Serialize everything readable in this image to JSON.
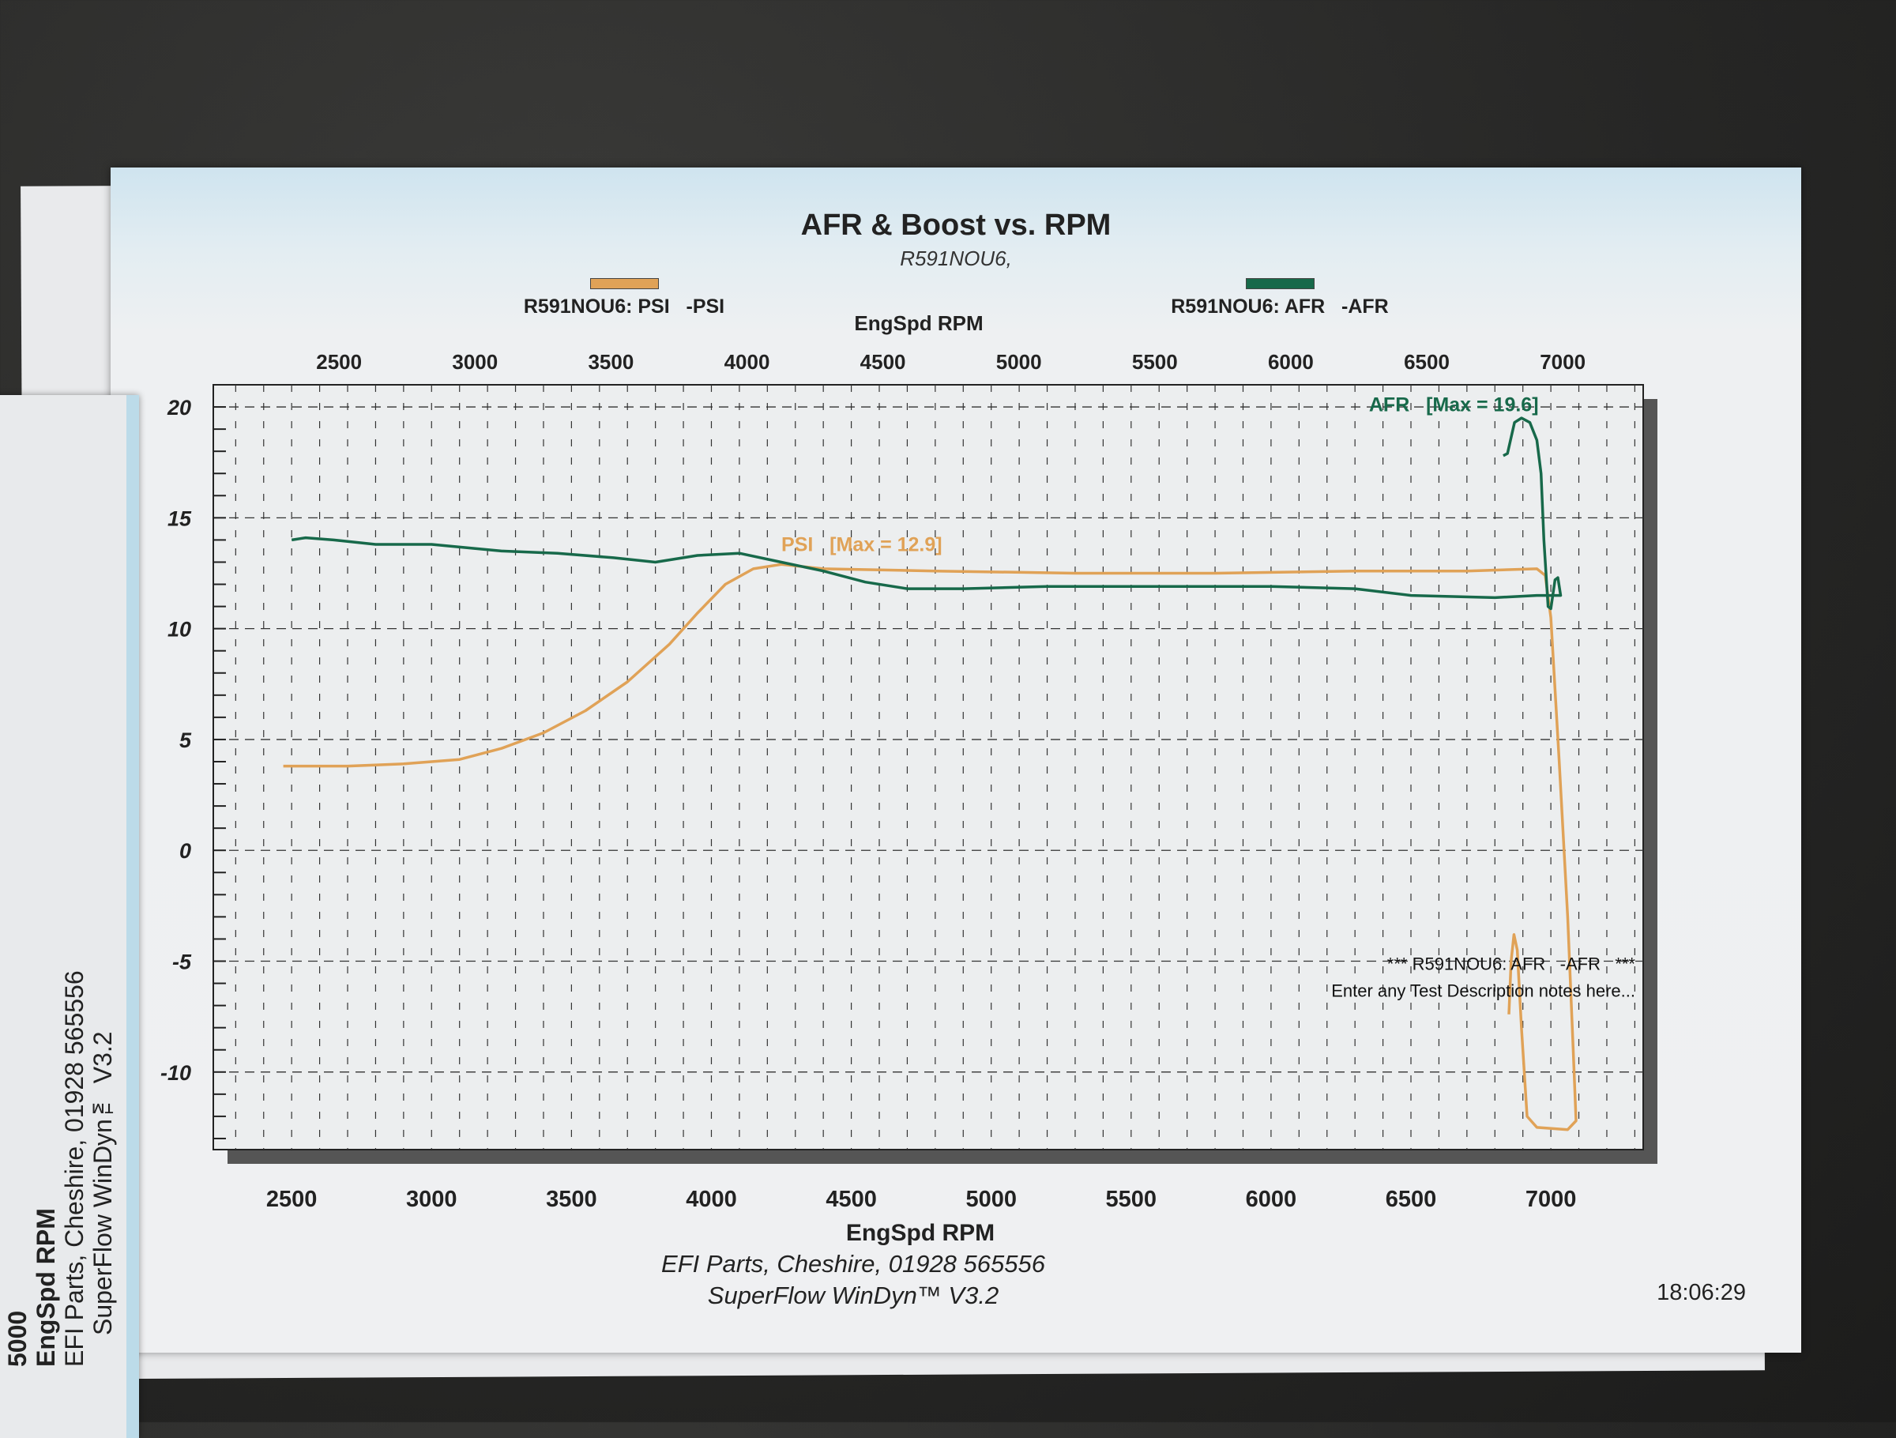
{
  "side_sheet": {
    "tick": "5000",
    "xlabel": "EngSpd RPM",
    "line1": "EFI Parts, Cheshire, 01928 565556",
    "line2": "SuperFlow WinDyn™ V3.2"
  },
  "footer": {
    "line1": "EFI Parts, Cheshire, 01928 565556",
    "line2": "SuperFlow WinDyn™ V3.2",
    "time": "18:06:29"
  },
  "colors": {
    "psi": "#e0a257",
    "afr": "#17694a",
    "background": "#262625",
    "paper": "#eff0f2"
  },
  "chart_data": {
    "type": "line",
    "title": "AFR & Boost vs. RPM",
    "subtitle": "R591NOU6,",
    "xlabel": "EngSpd RPM",
    "xlabel_top": "EngSpd RPM",
    "ylabel": "",
    "xlim": [
      2220,
      7330
    ],
    "ylim": [
      -13.5,
      21
    ],
    "xticks": [
      2500,
      3000,
      3500,
      4000,
      4500,
      5000,
      5500,
      6000,
      6500,
      7000
    ],
    "xtick_labels": [
      "2500",
      "3000",
      "3500",
      "4000",
      "4500",
      "5000",
      "5500",
      "6000",
      "6500",
      "7000"
    ],
    "yticks": [
      20,
      15,
      10,
      5,
      0,
      -5,
      -10
    ],
    "ytick_labels": [
      "20",
      "15",
      "10",
      "5",
      "0",
      "-5",
      "-10"
    ],
    "grid": true,
    "legend_placement": "top",
    "legend": [
      "R591NOU6: PSI   -PSI",
      "R591NOU6: AFR   -AFR"
    ],
    "annotations": {
      "psi_max": "PSI   [Max = 12.9]",
      "afr_max": "AFR   [Max = 19.6]",
      "note_line1": "*** R591NOU6: AFR   -AFR   ***",
      "note_line2": "Enter any Test Description notes here..."
    },
    "series": [
      {
        "name": "R591NOU6: PSI   -PSI",
        "color": "#e0a257",
        "points": [
          [
            2470,
            3.8
          ],
          [
            2700,
            3.8
          ],
          [
            2900,
            3.9
          ],
          [
            3100,
            4.1
          ],
          [
            3250,
            4.6
          ],
          [
            3400,
            5.3
          ],
          [
            3550,
            6.3
          ],
          [
            3700,
            7.6
          ],
          [
            3850,
            9.3
          ],
          [
            3950,
            10.7
          ],
          [
            4050,
            12.0
          ],
          [
            4150,
            12.7
          ],
          [
            4250,
            12.9
          ],
          [
            4400,
            12.7
          ],
          [
            4800,
            12.6
          ],
          [
            5300,
            12.5
          ],
          [
            5800,
            12.5
          ],
          [
            6300,
            12.6
          ],
          [
            6700,
            12.6
          ],
          [
            6950,
            12.7
          ],
          [
            6980,
            12.4
          ],
          [
            7000,
            10.5
          ],
          [
            7030,
            4
          ],
          [
            7060,
            -3
          ],
          [
            7080,
            -9
          ],
          [
            7090,
            -12.2
          ],
          [
            7060,
            -12.6
          ],
          [
            6950,
            -12.5
          ],
          [
            6915,
            -12.0
          ],
          [
            6895,
            -8
          ],
          [
            6880,
            -4.5
          ],
          [
            6868,
            -3.8
          ],
          [
            6858,
            -5
          ],
          [
            6850,
            -7.4
          ]
        ]
      },
      {
        "name": "R591NOU6: AFR   -AFR",
        "color": "#17694a",
        "points": [
          [
            6830,
            17.8
          ],
          [
            6845,
            17.9
          ],
          [
            6870,
            19.3
          ],
          [
            6895,
            19.5
          ],
          [
            6925,
            19.3
          ],
          [
            6950,
            18.5
          ],
          [
            6965,
            17
          ],
          [
            6975,
            14
          ],
          [
            6990,
            11.0
          ],
          [
            7000,
            10.9
          ],
          [
            7015,
            12.2
          ],
          [
            7025,
            12.3
          ],
          [
            7035,
            11.5
          ],
          [
            7010,
            11.5
          ],
          [
            6950,
            11.5
          ],
          [
            6800,
            11.4
          ],
          [
            6500,
            11.5
          ],
          [
            6300,
            11.8
          ],
          [
            6000,
            11.9
          ],
          [
            5600,
            11.9
          ],
          [
            5200,
            11.9
          ],
          [
            4900,
            11.8
          ],
          [
            4700,
            11.8
          ],
          [
            4550,
            12.1
          ],
          [
            4400,
            12.6
          ],
          [
            4250,
            13.0
          ],
          [
            4100,
            13.4
          ],
          [
            3950,
            13.3
          ],
          [
            3800,
            13.0
          ],
          [
            3650,
            13.2
          ],
          [
            3450,
            13.4
          ],
          [
            3250,
            13.5
          ],
          [
            3000,
            13.8
          ],
          [
            2800,
            13.8
          ],
          [
            2650,
            14.0
          ],
          [
            2550,
            14.1
          ],
          [
            2500,
            14.0
          ]
        ]
      }
    ]
  }
}
